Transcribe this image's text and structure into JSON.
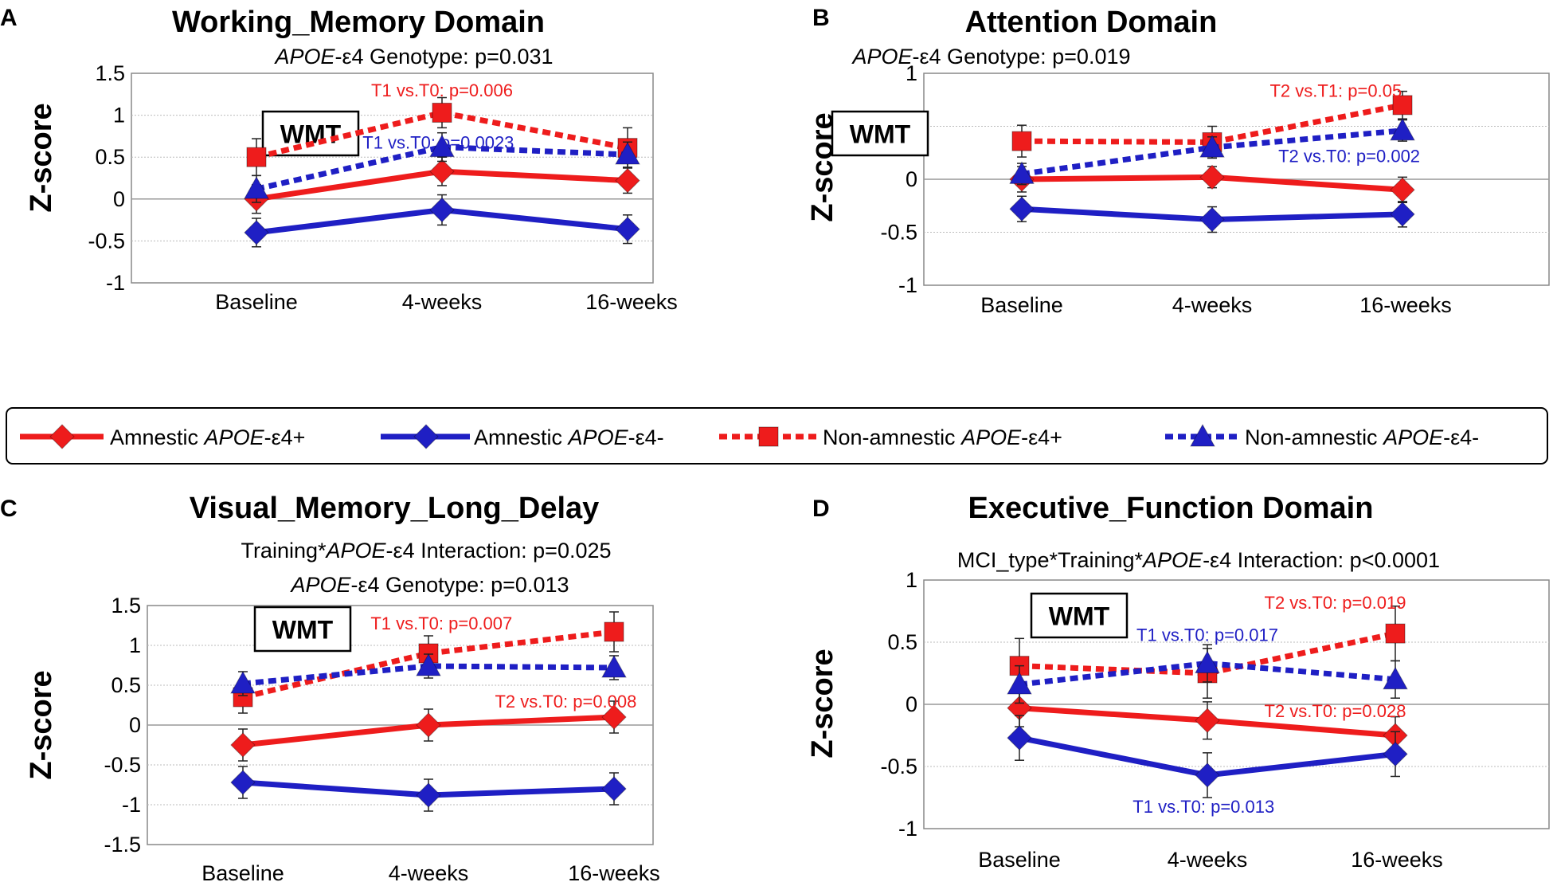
{
  "legend": [
    {
      "id": "aplus",
      "prefix": "Amnestic ",
      "gene": "APOE",
      "suffix": "-ε4+",
      "color": "#ee1c1c",
      "marker": "diamond",
      "dashed": false
    },
    {
      "id": "aminus",
      "prefix": "Amnestic ",
      "gene": "APOE",
      "suffix": "-ε4-",
      "color": "#1f1fc4",
      "marker": "diamond",
      "dashed": false
    },
    {
      "id": "naplus",
      "prefix": "Non-amnestic ",
      "gene": "APOE",
      "suffix": "-ε4+",
      "color": "#ee1c1c",
      "marker": "square",
      "dashed": true
    },
    {
      "id": "naminus",
      "prefix": "Non-amnestic ",
      "gene": "APOE",
      "suffix": "-ε4-",
      "color": "#1f1fc4",
      "marker": "triangle",
      "dashed": true
    }
  ],
  "box_label": "WMT",
  "chart_data": [
    {
      "panel": "A",
      "type": "line",
      "title": "Working_Memory Domain",
      "subtitle_lines": [
        [
          {
            "t": "APOE",
            "i": true
          },
          {
            "t": "-ε4 Genotype: p=0.031",
            "i": false
          }
        ]
      ],
      "ylabel": "Z-score",
      "ylim": [
        -1,
        1.5
      ],
      "yticks": [
        "1.5",
        "1",
        "0.5",
        "0",
        "-0.5",
        "-1"
      ],
      "categories": [
        "Baseline",
        "4-weeks",
        "16-weeks"
      ],
      "series": [
        {
          "id": "aplus",
          "name": "Amnestic APOE-ε4+",
          "values": [
            0.0,
            0.33,
            0.22
          ],
          "err": [
            0.17,
            0.17,
            0.15
          ]
        },
        {
          "id": "aminus",
          "name": "Amnestic APOE-ε4-",
          "values": [
            -0.4,
            -0.13,
            -0.36
          ],
          "err": [
            0.17,
            0.18,
            0.17
          ]
        },
        {
          "id": "naplus",
          "name": "Non-amnestic APOE-ε4+",
          "values": [
            0.5,
            1.03,
            0.61
          ],
          "err": [
            0.22,
            0.18,
            0.24
          ]
        },
        {
          "id": "naminus",
          "name": "Non-amnestic APOE-ε4-",
          "values": [
            0.12,
            0.62,
            0.53
          ],
          "err": [
            0.16,
            0.17,
            0.15
          ]
        }
      ],
      "annotations": [
        {
          "text": "T1 vs.T0:  p=0.006",
          "color": "#ee1c1c",
          "x": 1.0,
          "y": 1.3
        },
        {
          "text": "T1 vs.T0:  p=0.0023",
          "color": "#1f1fc4",
          "x": 0.98,
          "y": 0.68
        }
      ]
    },
    {
      "panel": "B",
      "type": "line",
      "title": "Attention Domain",
      "subtitle_lines": [
        [
          {
            "t": "APOE",
            "i": true
          },
          {
            "t": "-ε4 Genotype: p=0.019",
            "i": false
          }
        ]
      ],
      "ylabel": "Z-score",
      "ylim": [
        -1,
        1
      ],
      "yticks": [
        "1",
        "0.5",
        "0",
        "-0.5",
        "-1"
      ],
      "categories": [
        "Baseline",
        "4-weeks",
        "16-weeks"
      ],
      "series": [
        {
          "id": "aplus",
          "name": "Amnestic APOE-ε4+",
          "values": [
            0.0,
            0.02,
            -0.1
          ],
          "err": [
            0.12,
            0.1,
            0.12
          ]
        },
        {
          "id": "aminus",
          "name": "Amnestic APOE-ε4-",
          "values": [
            -0.28,
            -0.38,
            -0.33
          ],
          "err": [
            0.12,
            0.12,
            0.12
          ]
        },
        {
          "id": "naplus",
          "name": "Non-amnestic APOE-ε4+",
          "values": [
            0.36,
            0.35,
            0.7
          ],
          "err": [
            0.15,
            0.15,
            0.13
          ]
        },
        {
          "id": "naminus",
          "name": "Non-amnestic APOE-ε4-",
          "values": [
            0.05,
            0.3,
            0.46
          ],
          "err": [
            0.1,
            0.1,
            0.1
          ]
        }
      ],
      "annotations": [
        {
          "text": "T2 vs.T1:  p=0.05",
          "color": "#ee1c1c",
          "x": 1.65,
          "y": 0.84
        },
        {
          "text": "T2 vs.T0:  p=0.002",
          "color": "#1f1fc4",
          "x": 1.72,
          "y": 0.22
        }
      ]
    },
    {
      "panel": "C",
      "type": "line",
      "title": "Visual_Memory_Long_Delay",
      "subtitle_lines": [
        [
          {
            "t": "Training*",
            "i": false
          },
          {
            "t": "APOE",
            "i": true
          },
          {
            "t": "-ε4  Interaction: p=0.025",
            "i": false
          }
        ],
        [
          {
            "t": "APOE",
            "i": true
          },
          {
            "t": "-ε4 Genotype:  p=0.013",
            "i": false
          }
        ]
      ],
      "ylabel": "Z-score",
      "ylim": [
        -1.5,
        1.5
      ],
      "yticks": [
        "1.5",
        "1",
        "0.5",
        "0",
        "-0.5",
        "-1",
        "-1.5"
      ],
      "categories": [
        "Baseline",
        "4-weeks",
        "16-weeks"
      ],
      "series": [
        {
          "id": "aplus",
          "name": "Amnestic APOE-ε4+",
          "values": [
            -0.25,
            0.0,
            0.1
          ],
          "err": [
            0.2,
            0.2,
            0.2
          ]
        },
        {
          "id": "aminus",
          "name": "Amnestic APOE-ε4-",
          "values": [
            -0.72,
            -0.88,
            -0.8
          ],
          "err": [
            0.2,
            0.2,
            0.2
          ]
        },
        {
          "id": "naplus",
          "name": "Non-amnestic APOE-ε4+",
          "values": [
            0.35,
            0.9,
            1.17
          ],
          "err": [
            0.2,
            0.22,
            0.25
          ]
        },
        {
          "id": "naminus",
          "name": "Non-amnestic APOE-ε4-",
          "values": [
            0.52,
            0.74,
            0.72
          ],
          "err": [
            0.15,
            0.15,
            0.15
          ]
        }
      ],
      "annotations": [
        {
          "text": "T1 vs.T0:  p=0.007",
          "color": "#ee1c1c",
          "x": 1.07,
          "y": 1.28
        },
        {
          "text": "T2 vs.T0:  p=0.008",
          "color": "#ee1c1c",
          "x": 1.74,
          "y": 0.3
        }
      ]
    },
    {
      "panel": "D",
      "type": "line",
      "title": "Executive_Function Domain",
      "subtitle_lines": [
        [
          {
            "t": "MCI_type*Training*",
            "i": false
          },
          {
            "t": "APOE",
            "i": true
          },
          {
            "t": "-ε4  Interaction: p<0.0001",
            "i": false
          }
        ]
      ],
      "ylabel": "Z-score",
      "ylim": [
        -1,
        1
      ],
      "yticks": [
        "1",
        "0.5",
        "0",
        "-0.5",
        "-1"
      ],
      "categories": [
        "Baseline",
        "4-weeks",
        "16-weeks"
      ],
      "series": [
        {
          "id": "aplus",
          "name": "Amnestic APOE-ε4+",
          "values": [
            -0.03,
            -0.13,
            -0.25
          ],
          "err": [
            0.15,
            0.15,
            0.15
          ]
        },
        {
          "id": "aminus",
          "name": "Amnestic APOE-ε4-",
          "values": [
            -0.27,
            -0.57,
            -0.4
          ],
          "err": [
            0.18,
            0.18,
            0.18
          ]
        },
        {
          "id": "naplus",
          "name": "Non-amnestic APOE-ε4+",
          "values": [
            0.31,
            0.25,
            0.57
          ],
          "err": [
            0.22,
            0.2,
            0.22
          ]
        },
        {
          "id": "naminus",
          "name": "Non-amnestic APOE-ε4-",
          "values": [
            0.16,
            0.33,
            0.2
          ],
          "err": [
            0.15,
            0.15,
            0.15
          ]
        }
      ],
      "annotations": [
        {
          "text": "T1 vs.T0:  p=0.017",
          "color": "#1f1fc4",
          "x": 1.0,
          "y": 0.56
        },
        {
          "text": "T2 vs.T0:  p=0.019",
          "color": "#ee1c1c",
          "x": 1.68,
          "y": 0.82
        },
        {
          "text": "T2 vs.T0:  p=0.028",
          "color": "#ee1c1c",
          "x": 1.68,
          "y": -0.05
        },
        {
          "text": "T1 vs.T0:  p=0.013",
          "color": "#1f1fc4",
          "x": 0.98,
          "y": -0.82
        }
      ]
    }
  ]
}
